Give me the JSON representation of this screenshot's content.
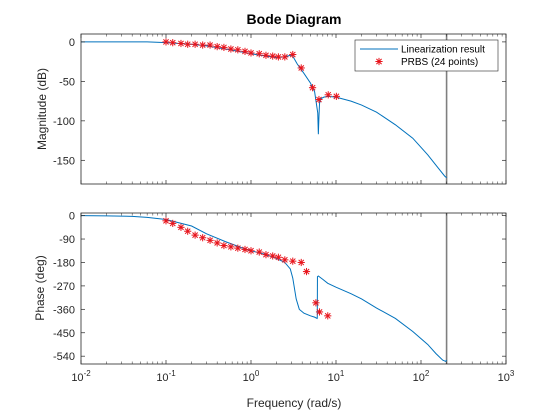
{
  "chart_data": {
    "type": "line",
    "title": "Bode Diagram",
    "xlabel": "Frequency (rad/s)",
    "xscale": "log",
    "xlim": [
      0.01,
      1000
    ],
    "x_ticks": [
      {
        "base": "10",
        "exp": "-2"
      },
      {
        "base": "10",
        "exp": "-1"
      },
      {
        "base": "10",
        "exp": "0"
      },
      {
        "base": "10",
        "exp": "1"
      },
      {
        "base": "10",
        "exp": "2"
      },
      {
        "base": "10",
        "exp": "3"
      }
    ],
    "nyquist_frequency": 200,
    "grid": false,
    "colors": {
      "linearization": "#0072BD",
      "prbs": "#E8141C",
      "nyquist_line": "#7F7F7F",
      "axes": "#262626"
    },
    "legend": {
      "placement": "top-right",
      "entries": [
        "Linearization result",
        "PRBS (24 points)"
      ]
    },
    "magnitude": {
      "ylabel": "Magnitude (dB)",
      "ylim": [
        -180,
        10
      ],
      "ticks": [
        0,
        -50,
        -100,
        -150
      ],
      "tick_labels": [
        "0",
        "-50",
        "-100",
        "-150"
      ],
      "linearization": {
        "name": "Linearization result",
        "x": [
          0.01,
          0.03,
          0.06,
          0.1,
          0.2,
          0.3,
          0.5,
          0.8,
          1,
          1.5,
          2,
          2.5,
          2.9,
          3.1,
          3.5,
          4.2,
          5,
          5.6,
          6.1,
          6.2,
          6.3,
          6.4,
          6.6,
          7.2,
          8,
          10,
          15,
          20,
          30,
          50,
          80,
          120,
          160,
          190,
          200
        ],
        "y": [
          0,
          0,
          0,
          -1,
          -3,
          -5,
          -9,
          -13,
          -15,
          -18,
          -20,
          -19,
          -17,
          -18,
          -28,
          -40,
          -52,
          -63,
          -90,
          -117,
          -95,
          -78,
          -72,
          -70,
          -69,
          -70,
          -75,
          -80,
          -89,
          -105,
          -122,
          -143,
          -160,
          -170,
          -172
        ]
      },
      "prbs": {
        "name": "PRBS (24 points)",
        "x": [
          0.1,
          0.12,
          0.15,
          0.18,
          0.22,
          0.27,
          0.33,
          0.4,
          0.48,
          0.58,
          0.7,
          0.85,
          1.0,
          1.25,
          1.5,
          1.8,
          2.1,
          2.5,
          3.1,
          3.9,
          5.3,
          6.3,
          8.1,
          10.1
        ],
        "y": [
          0,
          -1,
          -2,
          -3,
          -3,
          -4,
          -4,
          -6,
          -7,
          -9,
          -10,
          -12,
          -14,
          -15,
          -17,
          -18,
          -19,
          -19,
          -16,
          -33,
          -58,
          -73,
          -67,
          -69
        ]
      }
    },
    "phase": {
      "ylabel": "Phase (deg)",
      "ylim": [
        -570,
        10
      ],
      "ticks": [
        0,
        -90,
        -180,
        -270,
        -360,
        -450,
        -540
      ],
      "tick_labels": [
        "0",
        "-90",
        "-180",
        "-270",
        "-360",
        "-450",
        "-540"
      ],
      "linearization": {
        "name": "Linearization result",
        "x": [
          0.01,
          0.02,
          0.04,
          0.06,
          0.1,
          0.2,
          0.3,
          0.5,
          0.8,
          1,
          1.5,
          2,
          2.5,
          2.9,
          3.1,
          3.4,
          3.7,
          4.2,
          5,
          5.6,
          6.0,
          6.02,
          6.05,
          6.2,
          7,
          8,
          10,
          15,
          20,
          30,
          50,
          80,
          120,
          150,
          180,
          195,
          200
        ],
        "y": [
          0,
          -1,
          -3,
          -7,
          -15,
          -40,
          -70,
          -100,
          -125,
          -135,
          -150,
          -165,
          -180,
          -205,
          -240,
          -320,
          -360,
          -375,
          -385,
          -390,
          -395,
          -390,
          -235,
          -232,
          -245,
          -260,
          -275,
          -300,
          -320,
          -355,
          -395,
          -445,
          -495,
          -530,
          -555,
          -560,
          -555
        ]
      },
      "prbs": {
        "name": "PRBS (24 points)",
        "x": [
          0.1,
          0.12,
          0.15,
          0.18,
          0.22,
          0.27,
          0.33,
          0.4,
          0.48,
          0.58,
          0.7,
          0.85,
          1.0,
          1.25,
          1.5,
          1.8,
          2.1,
          2.5,
          3.1,
          3.9,
          4.5,
          5.8,
          6.4,
          8.0
        ],
        "y": [
          -20,
          -30,
          -45,
          -60,
          -75,
          -85,
          -95,
          -105,
          -115,
          -120,
          -125,
          -130,
          -135,
          -140,
          -150,
          -155,
          -160,
          -170,
          -175,
          -180,
          -215,
          -335,
          -370,
          -385
        ]
      }
    }
  }
}
